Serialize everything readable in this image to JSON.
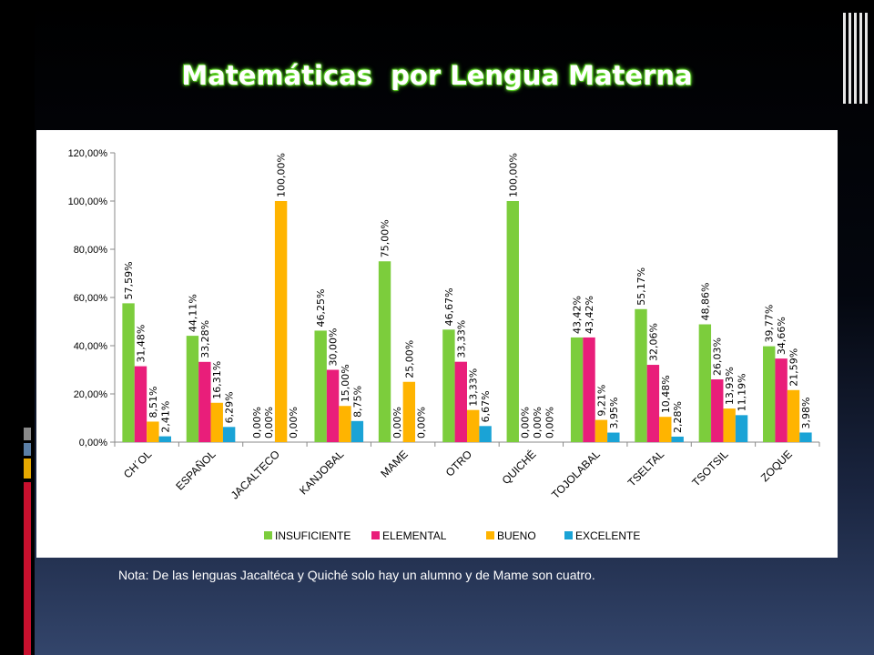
{
  "title": "Matemáticas  por Lengua Materna",
  "note": "Nota: De las lenguas Jacaltéca y Quiché solo hay un alumno y de Mame son cuatro.",
  "colors": {
    "INSUFICIENTE": "#7ccd3c",
    "ELEMENTAL": "#e91e7a",
    "BUENO": "#ffb400",
    "EXCELENTE": "#1aa3d6"
  },
  "chart_data": {
    "type": "bar",
    "title": "Matemáticas  por Lengua Materna",
    "categories": [
      "CH´OL",
      "ESPAÑOL",
      "JACALTECO",
      "KANJOBAL",
      "MAME",
      "OTRO",
      "QUICHÉ",
      "TOJOLABAL",
      "TSELTAL",
      "TSOTSIL",
      "ZOQUE"
    ],
    "ylim": [
      0,
      120
    ],
    "yticks": [
      "0,00%",
      "20,00%",
      "40,00%",
      "60,00%",
      "80,00%",
      "100,00%",
      "120,00%"
    ],
    "legend_position": "bottom",
    "series": [
      {
        "name": "INSUFICIENTE",
        "values": [
          57.59,
          44.11,
          0,
          46.25,
          75.0,
          46.67,
          100.0,
          43.42,
          55.17,
          48.86,
          39.77
        ],
        "labels": [
          "57,59%",
          "44,11%",
          "0,00%",
          "46,25%",
          "75,00%",
          "46,67%",
          "100,00%",
          "43,42%",
          "55,17%",
          "48,86%",
          "39,77%"
        ]
      },
      {
        "name": "ELEMENTAL",
        "values": [
          31.48,
          33.28,
          0,
          30.0,
          0,
          33.33,
          0,
          43.42,
          32.06,
          26.03,
          34.66
        ],
        "labels": [
          "31,48%",
          "33,28%",
          "0,00%",
          "30,00%",
          "0,00%",
          "33,33%",
          "0,00%",
          "43,42%",
          "32,06%",
          "26,03%",
          "34,66%"
        ]
      },
      {
        "name": "BUENO",
        "values": [
          8.51,
          16.31,
          100.0,
          15.0,
          25.0,
          13.33,
          0,
          9.21,
          10.48,
          13.93,
          21.59
        ],
        "labels": [
          "8,51%",
          "16,31%",
          "100,00%",
          "15,00%",
          "25,00%",
          "13,33%",
          "0,00%",
          "9,21%",
          "10,48%",
          "13,93%",
          "21,59%"
        ]
      },
      {
        "name": "EXCELENTE",
        "values": [
          2.41,
          6.29,
          0,
          8.75,
          0,
          6.67,
          0,
          3.95,
          2.28,
          11.19,
          3.98
        ],
        "labels": [
          "2,41%",
          "6,29%",
          "0,00%",
          "8,75%",
          "0,00%",
          "6,67%",
          "0,00%",
          "3,95%",
          "2,28%",
          "11,19%",
          "3,98%"
        ]
      }
    ]
  }
}
